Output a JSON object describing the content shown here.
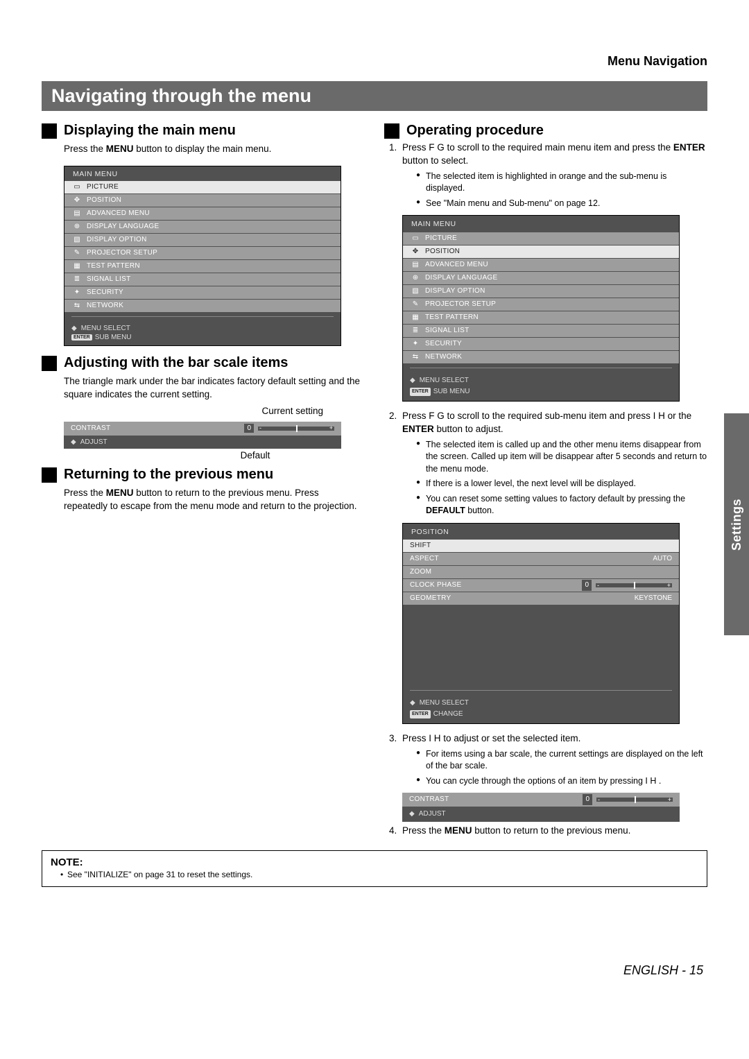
{
  "header": {
    "right_title": "Menu Navigation"
  },
  "section_title": "Navigating through the menu",
  "left": {
    "h1": "Displaying the main menu",
    "t1_pre": "Press the ",
    "t1_b": "MENU",
    "t1_post": " button to display the main menu.",
    "h2": "Adjusting with the bar scale items",
    "t2": "The triangle mark under the bar indicates factory default setting and the square indicates the current setting.",
    "caption_current": "Current setting",
    "caption_default": "Default",
    "h3": "Returning to the previous menu",
    "t3_pre": "Press the ",
    "t3_b": "MENU",
    "t3_post": " button to return to the previous menu. Press repeatedly to escape from the menu mode and return to the projection."
  },
  "right": {
    "h1": "Operating procedure",
    "step1_pre": "Press F   G  to scroll to the required main menu item and press the ",
    "step1_b": "ENTER",
    "step1_post": " button to select.",
    "step1_sub1": "The selected item is highlighted in orange and the sub-menu is displayed.",
    "step1_sub2": "See \"Main menu and Sub-menu\" on page 12.",
    "step2_pre": "Press F   G  to scroll to the required sub-menu item and press I   H  or the ",
    "step2_b": "ENTER",
    "step2_post": " button to adjust.",
    "step2_sub1": "The selected item is called up and the other menu items disappear from the screen. Called up item will be disappear after 5 seconds and return to the menu mode.",
    "step2_sub2": "If there is a lower level, the next level will be displayed.",
    "step2_sub3_pre": "You can reset some setting values to factory default by pressing the ",
    "step2_sub3_b": "DEFAULT",
    "step2_sub3_post": " button.",
    "step3": "Press I   H  to adjust or set the selected item.",
    "step3_sub1": "For items using a bar scale, the current settings are displayed on the left of the bar scale.",
    "step3_sub2": "You can cycle through the options of an item by pressing I  H .",
    "step4_pre": "Press the ",
    "step4_b": "MENU",
    "step4_post": " button to return to the previous menu."
  },
  "main_menu": {
    "title": "MAIN MENU",
    "items": [
      {
        "icon": "▭",
        "label": "PICTURE",
        "sel": true
      },
      {
        "icon": "✥",
        "label": "POSITION"
      },
      {
        "icon": "▤",
        "label": "ADVANCED MENU"
      },
      {
        "icon": "⊕",
        "label": "DISPLAY LANGUAGE"
      },
      {
        "icon": "▧",
        "label": "DISPLAY OPTION"
      },
      {
        "icon": "✎",
        "label": "PROJECTOR SETUP"
      },
      {
        "icon": "▦",
        "label": "TEST PATTERN"
      },
      {
        "icon": "≣",
        "label": "SIGNAL LIST"
      },
      {
        "icon": "✦",
        "label": "SECURITY"
      },
      {
        "icon": "⇆",
        "label": "NETWORK"
      }
    ],
    "foot1": "MENU SELECT",
    "foot2": "SUB MENU",
    "enter": "ENTER"
  },
  "main_menu2": {
    "title": "MAIN MENU",
    "items": [
      {
        "icon": "▭",
        "label": "PICTURE"
      },
      {
        "icon": "✥",
        "label": "POSITION",
        "sel": true
      },
      {
        "icon": "▤",
        "label": "ADVANCED MENU"
      },
      {
        "icon": "⊕",
        "label": "DISPLAY LANGUAGE"
      },
      {
        "icon": "▧",
        "label": "DISPLAY OPTION"
      },
      {
        "icon": "✎",
        "label": "PROJECTOR SETUP"
      },
      {
        "icon": "▦",
        "label": "TEST PATTERN"
      },
      {
        "icon": "≣",
        "label": "SIGNAL LIST"
      },
      {
        "icon": "✦",
        "label": "SECURITY"
      },
      {
        "icon": "⇆",
        "label": "NETWORK"
      }
    ],
    "foot1": "MENU SELECT",
    "foot2": "SUB MENU",
    "enter": "ENTER"
  },
  "position_menu": {
    "title": "POSITION",
    "items": [
      {
        "label": "SHIFT",
        "sel": true
      },
      {
        "label": "ASPECT",
        "val": "AUTO"
      },
      {
        "label": "ZOOM"
      },
      {
        "label": "CLOCK PHASE",
        "val": "0",
        "bar": true
      },
      {
        "label": "GEOMETRY",
        "val": "KEYSTONE"
      }
    ],
    "foot1": "MENU SELECT",
    "foot2": "CHANGE",
    "enter": "ENTER"
  },
  "contrast": {
    "label": "CONTRAST",
    "value": "0",
    "adjust": "ADJUST"
  },
  "note": {
    "heading": "NOTE:",
    "line": "See \"INITIALIZE\" on page 31 to reset the settings."
  },
  "side_tab": "Settings",
  "footer": {
    "lang": "ENGLISH",
    "sep": " - ",
    "page": "15"
  }
}
